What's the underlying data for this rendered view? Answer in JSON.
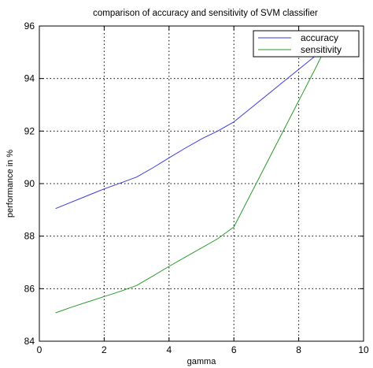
{
  "chart_data": {
    "type": "line",
    "title": "comparison of accuracy and sensitivity of SVM classifier",
    "xlabel": "gamma",
    "ylabel": "performance in %",
    "xlim": [
      0,
      10
    ],
    "ylim": [
      84,
      96
    ],
    "xticks": [
      0,
      2,
      4,
      6,
      8,
      10
    ],
    "yticks": [
      84,
      86,
      88,
      90,
      92,
      94,
      96
    ],
    "grid": true,
    "legend_position": "top-right",
    "series": [
      {
        "name": "accuracy",
        "color": "#3a3ad8",
        "x": [
          0.5,
          1.0,
          1.5,
          2.0,
          2.5,
          3.0,
          3.5,
          4.0,
          4.5,
          5.0,
          5.5,
          6.0,
          6.5,
          7.0,
          7.5,
          8.0,
          8.5,
          8.8
        ],
        "y": [
          89.05,
          89.3,
          89.55,
          89.8,
          90.02,
          90.25,
          90.6,
          90.98,
          91.35,
          91.7,
          92.0,
          92.35,
          92.85,
          93.35,
          93.85,
          94.35,
          94.85,
          95.1
        ]
      },
      {
        "name": "sensitivity",
        "color": "#2a9a2a",
        "x": [
          0.5,
          1.0,
          1.5,
          2.0,
          2.5,
          3.0,
          3.5,
          4.0,
          4.5,
          5.0,
          5.5,
          6.0,
          6.5,
          7.0,
          7.5,
          8.0,
          8.5,
          8.8
        ],
        "y": [
          85.08,
          85.3,
          85.5,
          85.7,
          85.9,
          86.12,
          86.48,
          86.85,
          87.2,
          87.55,
          87.9,
          88.35,
          89.55,
          90.75,
          91.95,
          93.15,
          94.35,
          95.1
        ]
      }
    ]
  }
}
